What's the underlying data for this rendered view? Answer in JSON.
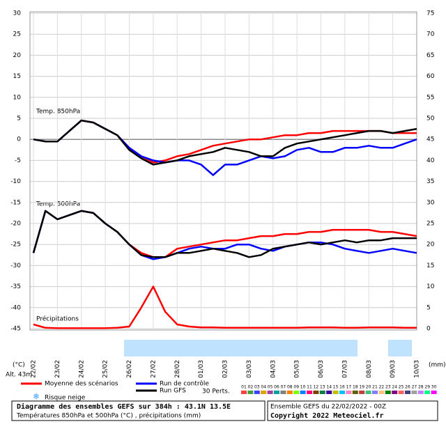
{
  "chart_data": {
    "type": "line",
    "panel_labels": {
      "t850": "Temp. 850hPa",
      "t500": "Temp. 500hPa",
      "precip": "Précipitations"
    },
    "y_unit": "(°C)",
    "y2_unit": "(mm)",
    "altitude": "Alt. 43m",
    "categories": [
      "22/02",
      null,
      "23/02",
      null,
      "24/02",
      null,
      "25/02",
      null,
      "26/02",
      null,
      "27/02",
      null,
      "28/02",
      null,
      "01/03",
      null,
      "02/03",
      null,
      "03/03",
      null,
      "04/03",
      null,
      "05/03",
      null,
      "06/03",
      null,
      "07/03",
      null,
      "08/03",
      null,
      "09/03",
      null,
      "10/03"
    ],
    "ylim": [
      -45,
      30
    ],
    "yticks": [
      -45,
      -40,
      -35,
      -30,
      -25,
      -20,
      -15,
      -10,
      -5,
      0,
      5,
      10,
      15,
      20,
      25,
      30
    ],
    "y2lim": [
      0,
      75
    ],
    "y2ticks": [
      0,
      5,
      10,
      15,
      20,
      25,
      30,
      35,
      40,
      45,
      50,
      55,
      60,
      65,
      70,
      75
    ],
    "grid": true,
    "series": [
      {
        "name": "Moyenne des scénarios",
        "color": "#ff0000",
        "t850": [
          0,
          -0.5,
          -0.5,
          2,
          4.5,
          4,
          2.5,
          1,
          -2,
          -4,
          -5.5,
          -5,
          -4,
          -3.5,
          -2.5,
          -1.5,
          -1,
          -0.5,
          0,
          0,
          0.5,
          1,
          1,
          1.5,
          1.5,
          2,
          2,
          2,
          2,
          2,
          1.5,
          1.5,
          1.5
        ],
        "t500": [
          -27,
          -17,
          -19,
          -18,
          -17,
          -17.5,
          -20,
          -22,
          -25,
          -27,
          -28,
          -28,
          -26,
          -25.5,
          -25,
          -24.5,
          -24,
          -24,
          -23.5,
          -23,
          -23,
          -22.5,
          -22.5,
          -22,
          -22,
          -21.5,
          -21.5,
          -21.5,
          -21.5,
          -22,
          -22,
          -22.5,
          -23
        ],
        "precip": [
          1,
          0.2,
          0.1,
          0.1,
          0.1,
          0.1,
          0.1,
          0.2,
          0.5,
          5,
          10,
          4,
          1,
          0.5,
          0.3,
          0.3,
          0.2,
          0.2,
          0.2,
          0.2,
          0.2,
          0.2,
          0.2,
          0.3,
          0.3,
          0.3,
          0.2,
          0.2,
          0.3,
          0.3,
          0.3,
          0.2,
          0.2
        ]
      },
      {
        "name": "Run de contrôle",
        "color": "#0000ff",
        "t850": [
          0,
          -0.5,
          -0.5,
          2,
          4.5,
          4,
          2.5,
          1,
          -2,
          -4,
          -5,
          -5.5,
          -5,
          -5,
          -6,
          -8.5,
          -6,
          -6,
          -5,
          -4,
          -4.5,
          -4,
          -2.5,
          -2,
          -3,
          -3,
          -2,
          -2,
          -1.5,
          -2,
          -2,
          -1,
          0
        ],
        "t500": [
          -27,
          -17,
          -19,
          -18,
          -17,
          -17.5,
          -20,
          -22,
          -25,
          -27.5,
          -28.5,
          -28,
          -27,
          -26,
          -25.5,
          -26,
          -26,
          -25,
          -25,
          -26,
          -26.5,
          -25.5,
          -25,
          -24.5,
          -24.5,
          -25,
          -26,
          -26.5,
          -27,
          -26.5,
          -26,
          -26.5,
          -27
        ]
      },
      {
        "name": "Run GFS",
        "color": "#000000",
        "t850": [
          0,
          -0.5,
          -0.5,
          2,
          4.5,
          4,
          2.5,
          1,
          -2.5,
          -4.5,
          -6,
          -5.5,
          -5,
          -4,
          -3.5,
          -3,
          -2,
          -2.5,
          -3,
          -4,
          -4,
          -2,
          -1,
          -0.5,
          0,
          0.5,
          1,
          1.5,
          2,
          2,
          1.5,
          2,
          2.5
        ],
        "t500": [
          -27,
          -17,
          -19,
          -18,
          -17,
          -17.5,
          -20,
          -22,
          -25,
          -27.5,
          -28,
          -28,
          -27,
          -27,
          -26.5,
          -26,
          -26.5,
          -27,
          -28,
          -27.5,
          -26,
          -25.5,
          -25,
          -24.5,
          -25,
          -24.5,
          -24,
          -24.5,
          -24,
          -24,
          -23.5,
          -23.5,
          -23.5
        ]
      }
    ],
    "perturbations": {
      "label": "30 Perts.",
      "members": [
        {
          "name": "01",
          "color": "#ff4040"
        },
        {
          "name": "02",
          "color": "#40a040"
        },
        {
          "name": "03",
          "color": "#4040ff"
        },
        {
          "name": "04",
          "color": "#e0a000"
        },
        {
          "name": "05",
          "color": "#a040a0"
        },
        {
          "name": "06",
          "color": "#00a0a0"
        },
        {
          "name": "07",
          "color": "#808080"
        },
        {
          "name": "08",
          "color": "#ff8000"
        },
        {
          "name": "09",
          "color": "#80ff00"
        },
        {
          "name": "10",
          "color": "#0080ff"
        },
        {
          "name": "11",
          "color": "#ff0080"
        },
        {
          "name": "12",
          "color": "#804000"
        },
        {
          "name": "13",
          "color": "#008040"
        },
        {
          "name": "14",
          "color": "#4000a0"
        },
        {
          "name": "15",
          "color": "#c0c000"
        },
        {
          "name": "16",
          "color": "#00c0ff"
        },
        {
          "name": "17",
          "color": "#ff80c0"
        },
        {
          "name": "18",
          "color": "#606000"
        },
        {
          "name": "19",
          "color": "#c04040"
        },
        {
          "name": "20",
          "color": "#40c080"
        },
        {
          "name": "21",
          "color": "#8080ff"
        },
        {
          "name": "22",
          "color": "#ffc080"
        },
        {
          "name": "23",
          "color": "#008000"
        },
        {
          "name": "24",
          "color": "#800080"
        },
        {
          "name": "25",
          "color": "#ff6060"
        },
        {
          "name": "26",
          "color": "#404080"
        },
        {
          "name": "27",
          "color": "#a0a0a0"
        },
        {
          "name": "28",
          "color": "#c080ff"
        },
        {
          "name": "29",
          "color": "#00ff80"
        },
        {
          "name": "30",
          "color": "#ff00ff"
        }
      ]
    },
    "snow_label": "Risque neige",
    "footer": {
      "title": "Diagramme des ensembles GEFS sur 384h : 43.1N 13.5E",
      "subtitle": "Températures 850hPa et 500hPa (°C) , précipitations (mm)",
      "run": "Ensemble GEFS du 22/02/2022 - 00Z",
      "copyright": "Copyright 2022 Meteociel.fr"
    }
  }
}
